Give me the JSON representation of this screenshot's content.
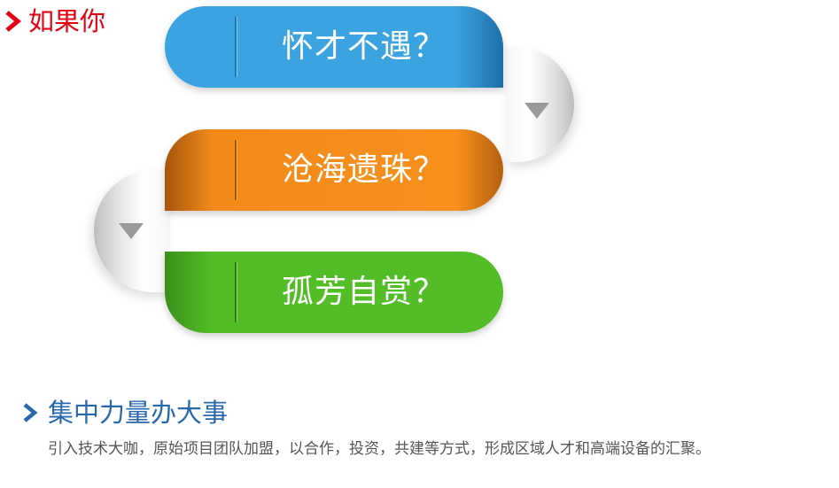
{
  "top_heading": {
    "title": "如果你",
    "icon": "chevron-right-icon",
    "color": "#e60012"
  },
  "ribbon": {
    "items": [
      {
        "label": "怀才不遇？",
        "color": "#3aa3e0"
      },
      {
        "label": "沧海遗珠？",
        "color": "#f8901c"
      },
      {
        "label": "孤芳自赏？",
        "color": "#52bd26"
      }
    ],
    "fold_icon": "triangle-down-icon"
  },
  "section": {
    "title": "集中力量办大事",
    "icon": "chevron-right-icon",
    "color": "#2a68ad",
    "description": "引入技术大咖，原始项目团队加盟，以合作，投资，共建等方式，形成区域人才和高端设备的汇聚。"
  }
}
